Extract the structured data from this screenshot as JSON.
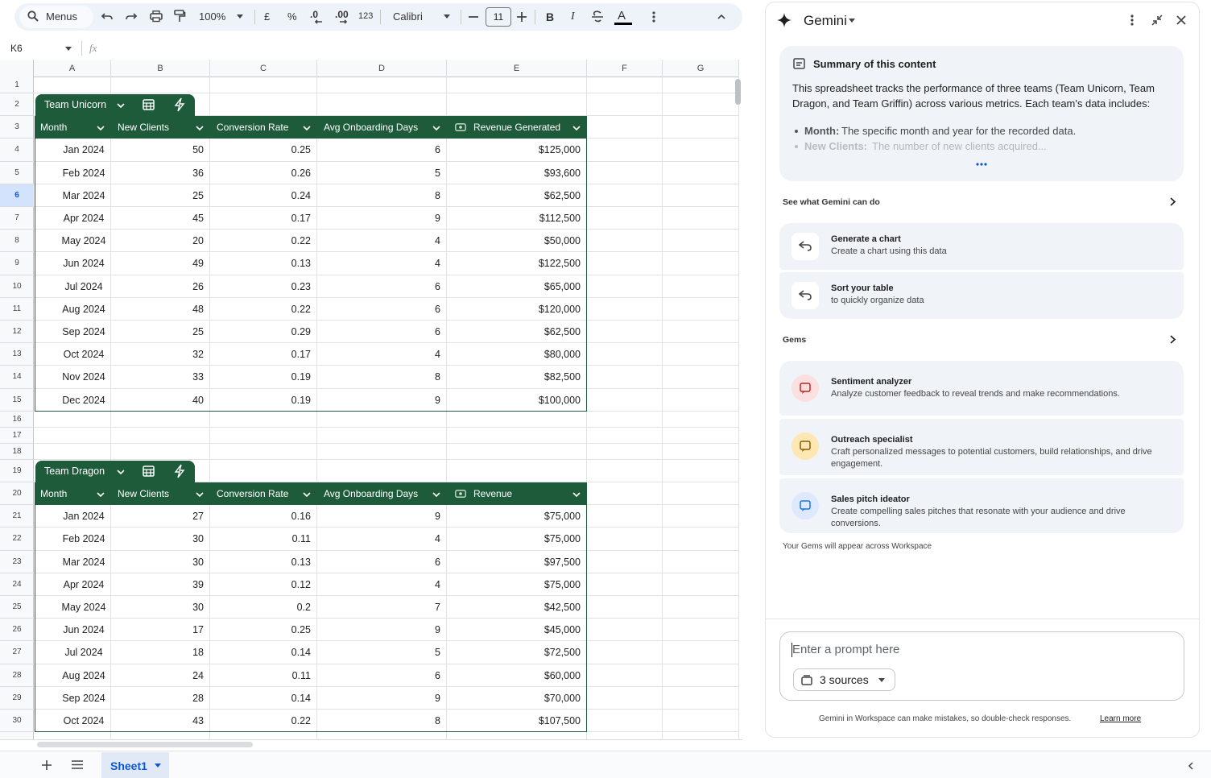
{
  "toolbar": {
    "menus": "Menus",
    "zoom": "100%",
    "currency": "£",
    "percent": "%",
    "decrease_decimal": ".0",
    "increase_decimal": ".00",
    "number_format": "123",
    "font": "Calibri",
    "font_size": "11",
    "bold": "B",
    "italic": "I",
    "text_color": "A"
  },
  "formula_bar": {
    "cell": "K6",
    "fx": "fx"
  },
  "sheet": {
    "columns": [
      "A",
      "B",
      "C",
      "D",
      "E",
      "F",
      "G"
    ],
    "rows": [
      1,
      2,
      3,
      4,
      5,
      6,
      7,
      8,
      9,
      10,
      11,
      12,
      13,
      14,
      15,
      16,
      17,
      18,
      19,
      20,
      21,
      22,
      23,
      24,
      25,
      26,
      27,
      28,
      29,
      30
    ],
    "tab": "Sheet1"
  },
  "tables": [
    {
      "name": "Team Unicorn",
      "headers": [
        "Month",
        "New Clients",
        "Conversion Rate",
        "Avg Onboarding Days",
        "Revenue Generated"
      ],
      "rows": [
        [
          "Jan 2024",
          50,
          0.25,
          6,
          "$125,000"
        ],
        [
          "Feb 2024",
          36,
          0.26,
          5,
          "$93,600"
        ],
        [
          "Mar 2024",
          25,
          0.24,
          8,
          "$62,500"
        ],
        [
          "Apr 2024",
          45,
          0.17,
          9,
          "$112,500"
        ],
        [
          "May 2024",
          20,
          0.22,
          4,
          "$50,000"
        ],
        [
          "Jun 2024",
          49,
          0.13,
          4,
          "$122,500"
        ],
        [
          "Jul 2024",
          26,
          0.23,
          6,
          "$65,000"
        ],
        [
          "Aug 2024",
          48,
          0.22,
          6,
          "$120,000"
        ],
        [
          "Sep 2024",
          25,
          0.29,
          6,
          "$62,500"
        ],
        [
          "Oct 2024",
          32,
          0.17,
          4,
          "$80,000"
        ],
        [
          "Nov 2024",
          33,
          0.19,
          8,
          "$82,500"
        ],
        [
          "Dec 2024",
          40,
          0.19,
          9,
          "$100,000"
        ]
      ]
    },
    {
      "name": "Team Dragon",
      "headers": [
        "Month",
        "New Clients",
        "Conversion Rate",
        "Avg Onboarding Days",
        "Revenue"
      ],
      "rows": [
        [
          "Jan 2024",
          27,
          0.16,
          9,
          "$75,000"
        ],
        [
          "Feb 2024",
          30,
          0.11,
          4,
          "$75,000"
        ],
        [
          "Mar 2024",
          30,
          0.13,
          6,
          "$97,500"
        ],
        [
          "Apr 2024",
          39,
          0.12,
          4,
          "$75,000"
        ],
        [
          "May 2024",
          30,
          0.2,
          7,
          "$42,500"
        ],
        [
          "Jun 2024",
          17,
          0.25,
          9,
          "$45,000"
        ],
        [
          "Jul 2024",
          18,
          0.14,
          5,
          "$72,500"
        ],
        [
          "Aug 2024",
          24,
          0.11,
          6,
          "$60,000"
        ],
        [
          "Sep 2024",
          28,
          0.14,
          9,
          "$70,000"
        ],
        [
          "Oct 2024",
          43,
          0.22,
          8,
          "$107,500"
        ]
      ]
    }
  ],
  "gemini": {
    "title": "Gemini",
    "summary": {
      "title": "Summary of this content",
      "text": "This spreadsheet tracks the performance of three teams (Team Unicorn, Team Dragon, and Team Griffin) across various metrics. Each team's data includes:",
      "bullets": [
        {
          "term": "Month:",
          "text": "The specific month and year for the recorded data."
        },
        {
          "term": "New Clients:",
          "text": "The number of new clients acquired..."
        }
      ]
    },
    "see_what": "See what Gemini can do",
    "suggestions": [
      {
        "title": "Generate a chart",
        "subtitle": "Create a chart using this data"
      },
      {
        "title": "Sort your table",
        "subtitle": "to quickly organize data"
      }
    ],
    "gems_heading": "Gems",
    "gems": [
      {
        "title": "Sentiment analyzer",
        "text": "Analyze customer feedback to reveal trends and make recommendations."
      },
      {
        "title": "Outreach specialist",
        "text": "Craft personalized messages to potential customers, build relationships, and drive engagement."
      },
      {
        "title": "Sales pitch ideator",
        "text": "Create compelling sales pitches that resonate with your audience and drive conversions."
      }
    ],
    "gems_note": "Your Gems will appear across Workspace",
    "prompt_placeholder": "Enter a prompt here",
    "sources": "3 sources",
    "disclaimer": "Gemini in Workspace can make mistakes, so double-check responses.",
    "learn_more": "Learn more"
  }
}
